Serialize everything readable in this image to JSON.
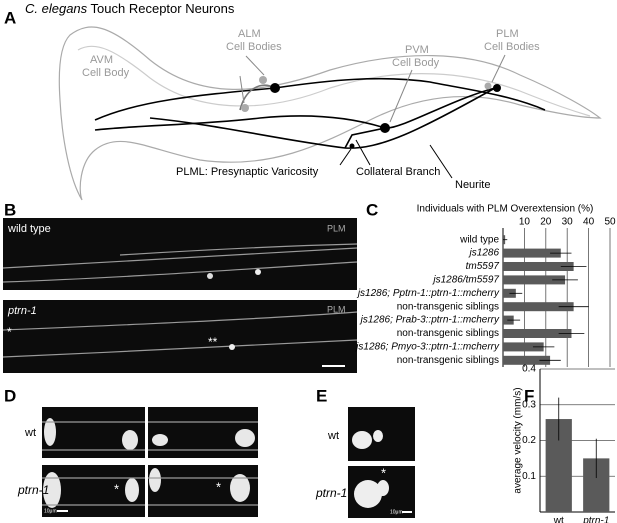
{
  "panels": {
    "a": "A",
    "b": "B",
    "c": "C",
    "d": "D",
    "e": "E",
    "f": "F"
  },
  "diagram": {
    "title_species": "C. elegans",
    "title_rest": "Touch Receptor Neurons",
    "labels": [
      {
        "lines": [
          "AVM",
          "Cell Body"
        ]
      },
      {
        "lines": [
          "ALM",
          "Cell Bodies"
        ]
      },
      {
        "lines": [
          "PVM",
          "Cell Body"
        ]
      },
      {
        "lines": [
          "PLM",
          "Cell Bodies"
        ]
      }
    ],
    "varicosity": "PLML: Presynaptic Varicosity",
    "branch": "Collateral Branch",
    "neurite": "Neurite"
  },
  "panel_b": {
    "top_label": "wild type",
    "top_marker": "PLM",
    "bottom_label": "ptrn-1",
    "bottom_marker": "PLM",
    "star": "*",
    "double_star": "**"
  },
  "panel_d": {
    "top_label": "wt",
    "bottom_label": "ptrn-1",
    "star": "*",
    "scale": "10μm"
  },
  "panel_e": {
    "top_label": "wt",
    "bottom_label": "ptrn-1",
    "star": "*",
    "scale": "10μm"
  },
  "chart_data": [
    {
      "type": "hbar",
      "title": "Individuals with PLM Overextension (%)",
      "categories": [
        "wild type",
        "js1286",
        "tm5597",
        "js1286/tm5597",
        "js1286; Pptrn-1::ptrn-1::mcherry",
        "non-transgenic siblings",
        "js1286; Prab-3::ptrn-1::mcherry",
        "non-transgenic siblings",
        "js1286; Pmyo-3::ptrn-1::mcherry",
        "non-transgenic siblings"
      ],
      "italic": [
        false,
        true,
        true,
        true,
        true,
        false,
        true,
        false,
        true,
        false
      ],
      "values": [
        1,
        27,
        33,
        29,
        6,
        33,
        5,
        32,
        19,
        22
      ],
      "errors": [
        1,
        5,
        6,
        6,
        3,
        7,
        3,
        6,
        5,
        5
      ],
      "color": "#5a5a5a",
      "xlim": [
        0,
        50
      ],
      "xticks": [
        10,
        20,
        30,
        40,
        50
      ],
      "grid": true
    },
    {
      "type": "bar",
      "y_label": "average velocity (mm/s)",
      "categories": [
        "wt",
        "ptrn-1"
      ],
      "italic": [
        false,
        true
      ],
      "values": [
        0.26,
        0.15
      ],
      "errors": [
        0.06,
        0.055
      ],
      "color": "#5a5a5a",
      "ylim": [
        0,
        0.4
      ],
      "yticks": [
        0.1,
        0.2,
        0.3,
        0.4
      ],
      "grid": true
    }
  ]
}
